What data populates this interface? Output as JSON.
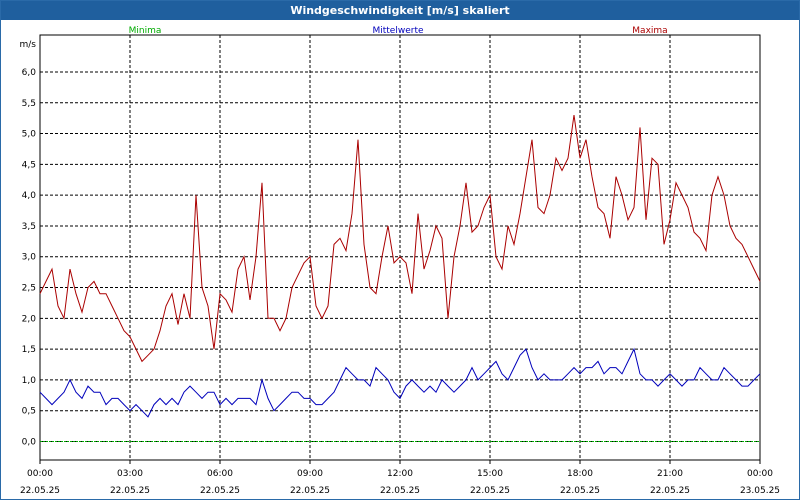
{
  "window": {
    "title": "Windgeschwindigkeit [m/s] skaliert"
  },
  "colors": {
    "minima": "#00aa00",
    "mittelwerte": "#0000bb",
    "maxima": "#aa0000",
    "grid": "#000000",
    "titlebar": "#1f5f9e"
  },
  "chart_data": {
    "type": "line",
    "title": "Windgeschwindigkeit [m/s] skaliert",
    "ylabel": "m/s",
    "xlabel": "",
    "ylim": [
      -0.3,
      6.6
    ],
    "xlim": [
      0,
      24
    ],
    "grid": true,
    "legend_placement": "top",
    "y_ticks": [
      "0,0",
      "0,5",
      "1,0",
      "1,5",
      "2,0",
      "2,5",
      "3,0",
      "3,5",
      "4,0",
      "4,5",
      "5,0",
      "5,5",
      "6,0"
    ],
    "x_ticks": [
      {
        "time": "00:00",
        "date": "22.05.25"
      },
      {
        "time": "03:00",
        "date": "22.05.25"
      },
      {
        "time": "06:00",
        "date": "22.05.25"
      },
      {
        "time": "09:00",
        "date": "22.05.25"
      },
      {
        "time": "12:00",
        "date": "22.05.25"
      },
      {
        "time": "15:00",
        "date": "22.05.25"
      },
      {
        "time": "18:00",
        "date": "22.05.25"
      },
      {
        "time": "21:00",
        "date": "22.05.25"
      },
      {
        "time": "00:00",
        "date": "23.05.25"
      }
    ],
    "x_hours_step": 0.2,
    "series": [
      {
        "name": "Minima",
        "values": [
          0.0,
          0.0,
          0.0,
          0.0,
          0.0,
          0.0,
          0.0,
          0.0,
          0.0,
          0.0,
          0.0,
          0.0,
          0.0,
          0.0,
          0.0,
          0.0,
          0.0,
          0.0,
          0.0,
          0.0,
          0.0,
          0.0,
          0.0,
          0.0,
          0.0,
          0.0,
          0.0,
          0.0,
          0.0,
          0.0,
          0.0,
          0.0,
          0.0,
          0.0,
          0.0,
          0.0,
          0.0,
          0.0,
          0.0,
          0.0,
          0.0,
          0.0,
          0.0,
          0.0,
          0.0,
          0.0,
          0.0,
          0.0,
          0.0,
          0.0,
          0.0,
          0.0,
          0.0,
          0.0,
          0.0,
          0.0,
          0.0,
          0.0,
          0.0,
          0.0,
          0.0,
          0.0,
          0.0,
          0.0,
          0.0,
          0.0,
          0.0,
          0.0,
          0.0,
          0.0,
          0.0,
          0.0,
          0.0,
          0.0,
          0.0,
          0.0,
          0.0,
          0.0,
          0.0,
          0.0,
          0.0,
          0.0,
          0.0,
          0.0,
          0.0,
          0.0,
          0.0,
          0.0,
          0.0,
          0.0,
          0.0,
          0.0,
          0.0,
          0.0,
          0.0,
          0.0,
          0.0,
          0.0,
          0.0,
          0.0,
          0.0,
          0.0,
          0.0,
          0.0,
          0.0,
          0.0,
          0.0,
          0.0,
          0.0,
          0.0,
          0.0,
          0.0,
          0.0,
          0.0,
          0.0,
          0.0,
          0.0,
          0.0,
          0.0,
          0.0,
          0.0
        ]
      },
      {
        "name": "Mittelwerte",
        "values": [
          0.8,
          0.7,
          0.6,
          0.7,
          0.8,
          1.0,
          0.8,
          0.7,
          0.9,
          0.8,
          0.8,
          0.6,
          0.7,
          0.7,
          0.6,
          0.5,
          0.6,
          0.5,
          0.4,
          0.6,
          0.7,
          0.6,
          0.7,
          0.6,
          0.8,
          0.9,
          0.8,
          0.7,
          0.8,
          0.8,
          0.6,
          0.7,
          0.6,
          0.7,
          0.7,
          0.7,
          0.6,
          1.0,
          0.7,
          0.5,
          0.6,
          0.7,
          0.8,
          0.8,
          0.7,
          0.7,
          0.6,
          0.6,
          0.7,
          0.8,
          1.0,
          1.2,
          1.1,
          1.0,
          1.0,
          0.9,
          1.2,
          1.1,
          1.0,
          0.8,
          0.7,
          0.9,
          1.0,
          0.9,
          0.8,
          0.9,
          0.8,
          1.0,
          0.9,
          0.8,
          0.9,
          1.0,
          1.2,
          1.0,
          1.1,
          1.2,
          1.3,
          1.1,
          1.0,
          1.2,
          1.4,
          1.5,
          1.2,
          1.0,
          1.1,
          1.0,
          1.0,
          1.0,
          1.1,
          1.2,
          1.1,
          1.2,
          1.2,
          1.3,
          1.1,
          1.2,
          1.2,
          1.1,
          1.3,
          1.5,
          1.1,
          1.0,
          1.0,
          0.9,
          1.0,
          1.1,
          1.0,
          0.9,
          1.0,
          1.0,
          1.2,
          1.1,
          1.0,
          1.0,
          1.2,
          1.1,
          1.0,
          0.9,
          0.9,
          1.0,
          1.1
        ]
      },
      {
        "name": "Maxima",
        "values": [
          2.4,
          2.6,
          2.8,
          2.2,
          2.0,
          2.8,
          2.4,
          2.1,
          2.5,
          2.6,
          2.4,
          2.4,
          2.2,
          2.0,
          1.8,
          1.7,
          1.5,
          1.3,
          1.4,
          1.5,
          1.8,
          2.2,
          2.4,
          1.9,
          2.4,
          2.0,
          4.0,
          2.5,
          2.2,
          1.5,
          2.4,
          2.3,
          2.1,
          2.8,
          3.0,
          2.3,
          3.0,
          4.2,
          2.0,
          2.0,
          1.8,
          2.0,
          2.5,
          2.7,
          2.9,
          3.0,
          2.2,
          2.0,
          2.2,
          3.2,
          3.3,
          3.1,
          3.7,
          4.9,
          3.2,
          2.5,
          2.4,
          3.0,
          3.5,
          2.9,
          3.0,
          2.9,
          2.4,
          3.7,
          2.8,
          3.1,
          3.5,
          3.3,
          2.0,
          3.0,
          3.5,
          4.2,
          3.4,
          3.5,
          3.8,
          4.0,
          3.0,
          2.8,
          3.5,
          3.2,
          3.7,
          4.3,
          4.9,
          3.8,
          3.7,
          4.0,
          4.6,
          4.4,
          4.6,
          5.3,
          4.6,
          4.9,
          4.3,
          3.8,
          3.7,
          3.3,
          4.3,
          4.0,
          3.6,
          3.8,
          5.1,
          3.6,
          4.6,
          4.5,
          3.2,
          3.6,
          4.2,
          4.0,
          3.8,
          3.4,
          3.3,
          3.1,
          4.0,
          4.3,
          4.0,
          3.5,
          3.3,
          3.2,
          3.0,
          2.8,
          2.6
        ]
      }
    ]
  }
}
